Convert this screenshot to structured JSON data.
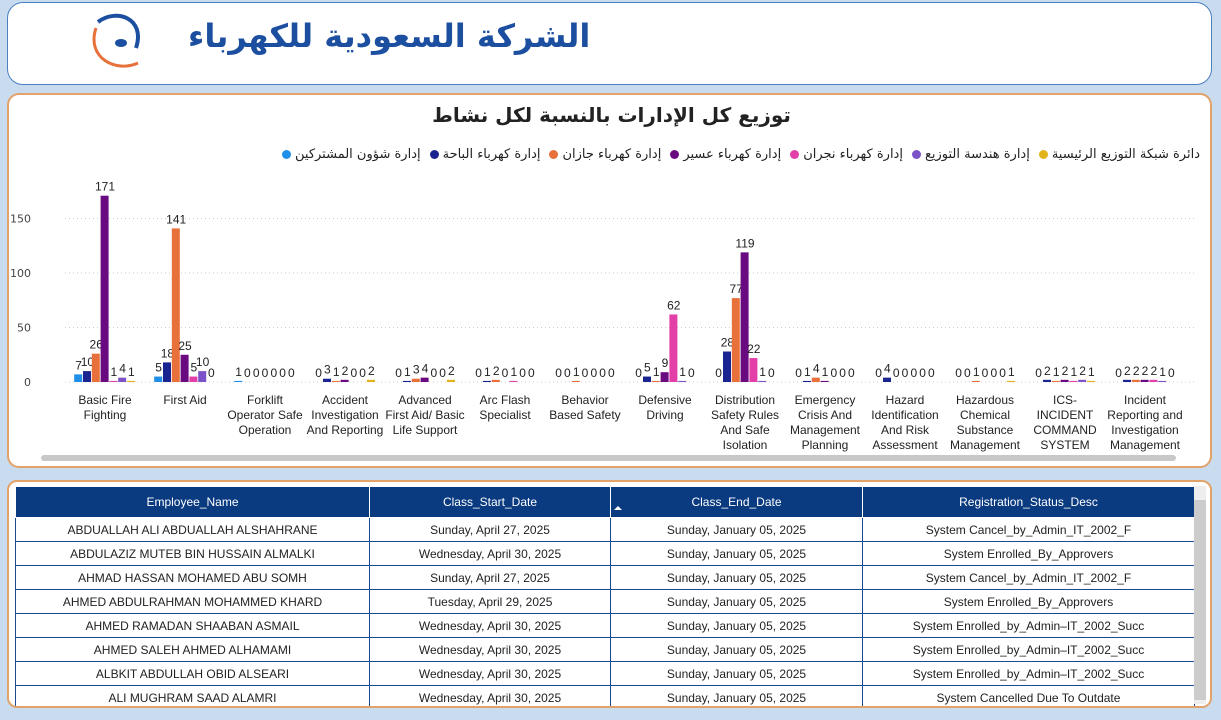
{
  "header": {
    "title": "الشركة السعودية للكهرباء"
  },
  "chart_data": {
    "type": "bar",
    "title": "توزيع كل الإدارات بالنسبة لكل نشاط",
    "categories": [
      "Basic Fire Fighting",
      "First Aid",
      "Forklift Operator Safe Operation",
      "Accident Investigation And Reporting",
      "Advanced First Aid/ Basic Life Support",
      "Arc Flash Specialist",
      "Behavior Based Safety",
      "Defensive Driving",
      "Distribution Safety Rules And Safe Isolation",
      "Emergency Crisis And Management Planning",
      "Hazard Identification And Risk Assessment",
      "Hazardous Chemical Substance Management",
      "ICS-INCIDENT COMMAND SYSTEM",
      "Incident Reporting and Investigation Management"
    ],
    "series": [
      {
        "name": "إدارة شؤون المشتركين",
        "color": "#1f8fe8",
        "values": [
          7,
          5,
          1,
          0,
          0,
          0,
          0,
          0,
          0,
          0,
          0,
          0,
          0,
          0
        ]
      },
      {
        "name": "إدارة كهرباء الباحة",
        "color": "#1a2490",
        "values": [
          10,
          18,
          0,
          3,
          1,
          1,
          0,
          5,
          28,
          1,
          4,
          0,
          2,
          2
        ]
      },
      {
        "name": "إدارة كهرباء جازان",
        "color": "#e8703a",
        "values": [
          26,
          141,
          0,
          1,
          3,
          2,
          1,
          1,
          77,
          4,
          0,
          1,
          1,
          2
        ]
      },
      {
        "name": "إدارة كهرباء عسير",
        "color": "#6a0a80",
        "values": [
          171,
          25,
          0,
          2,
          4,
          0,
          0,
          9,
          119,
          1,
          0,
          0,
          2,
          2
        ]
      },
      {
        "name": "إدارة كهرباء نجران",
        "color": "#e23fa8",
        "values": [
          1,
          5,
          0,
          0,
          0,
          1,
          0,
          62,
          22,
          0,
          0,
          0,
          1,
          2
        ]
      },
      {
        "name": "إدارة هندسة التوزيع",
        "color": "#7b52c8",
        "values": [
          4,
          10,
          0,
          0,
          0,
          0,
          0,
          1,
          1,
          0,
          0,
          0,
          2,
          1
        ]
      },
      {
        "name": "دائرة شبكة التوزيع الرئيسية",
        "color": "#e2b31a",
        "values": [
          1,
          0,
          0,
          2,
          2,
          0,
          0,
          0,
          0,
          0,
          0,
          1,
          1,
          0
        ]
      }
    ],
    "ylim": [
      0,
      190
    ],
    "yticks": [
      0,
      50,
      100,
      150
    ],
    "grid": true
  },
  "table": {
    "columns": [
      "Employee_Name",
      "Class_Start_Date",
      "Class_End_Date",
      "Registration_Status_Desc"
    ],
    "rows": [
      [
        "ABDUALLAH ALI ABDUALLAH ALSHAHRANE",
        "Sunday, April 27, 2025",
        "Sunday, January 05, 2025",
        "System Cancel_by_Admin_IT_2002_F"
      ],
      [
        "ABDULAZIZ MUTEB BIN HUSSAIN ALMALKI",
        "Wednesday, April 30, 2025",
        "Sunday, January 05, 2025",
        "System Enrolled_By_Approvers"
      ],
      [
        "AHMAD HASSAN MOHAMED ABU SOMH",
        "Sunday, April 27, 2025",
        "Sunday, January 05, 2025",
        "System Cancel_by_Admin_IT_2002_F"
      ],
      [
        "AHMED ABDULRAHMAN MOHAMMED KHARD",
        "Tuesday, April 29, 2025",
        "Sunday, January 05, 2025",
        "System Enrolled_By_Approvers"
      ],
      [
        "AHMED RAMADAN SHAABAN ASMAIL",
        "Wednesday, April 30, 2025",
        "Sunday, January 05, 2025",
        "System Enrolled_by_Admin–IT_2002_Succ"
      ],
      [
        "AHMED SALEH AHMED ALHAMAMI",
        "Wednesday, April 30, 2025",
        "Sunday, January 05, 2025",
        "System Enrolled_by_Admin–IT_2002_Succ"
      ],
      [
        "ALBKIT ABDULLAH OBID ALSEARI",
        "Wednesday, April 30, 2025",
        "Sunday, January 05, 2025",
        "System Enrolled_by_Admin–IT_2002_Succ"
      ],
      [
        "ALI MUGHRAM SAAD ALAMRI",
        "Wednesday, April 30, 2025",
        "Sunday, January 05, 2025",
        "System Cancelled Due To Outdate"
      ]
    ]
  }
}
